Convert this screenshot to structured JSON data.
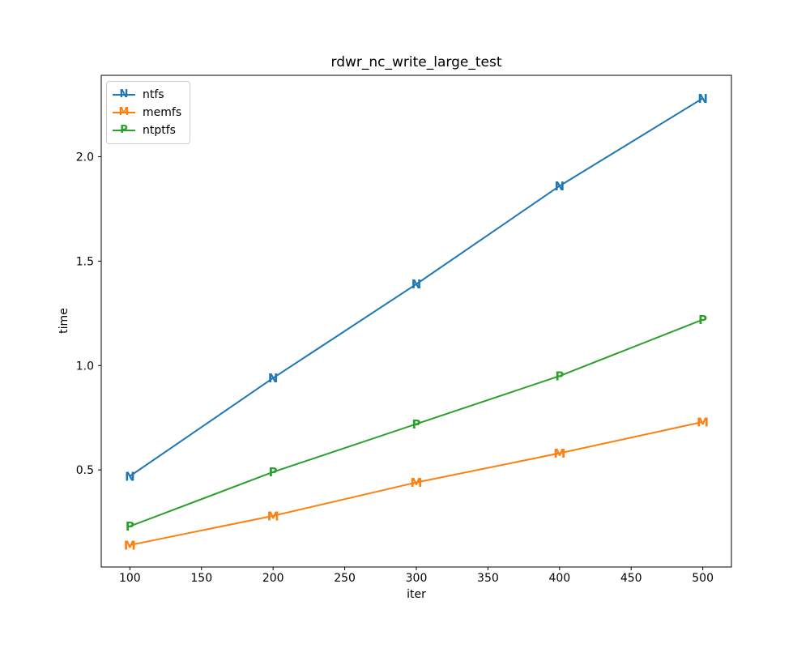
{
  "figure": {
    "background": "#ffffff",
    "frame_color": "#000000"
  },
  "chart_data": {
    "type": "line",
    "title": "rdwr_nc_write_large_test",
    "xlabel": "iter",
    "ylabel": "time",
    "x": [
      100,
      200,
      300,
      400,
      500
    ],
    "series": [
      {
        "name": "ntfs",
        "marker": "N",
        "color": "#1f77b4",
        "values": [
          0.47,
          0.94,
          1.39,
          1.86,
          2.28
        ]
      },
      {
        "name": "memfs",
        "marker": "M",
        "color": "#ff7f0e",
        "values": [
          0.14,
          0.28,
          0.44,
          0.58,
          0.73
        ]
      },
      {
        "name": "ntptfs",
        "marker": "P",
        "color": "#2ca02c",
        "values": [
          0.23,
          0.49,
          0.72,
          0.95,
          1.22
        ]
      }
    ],
    "xlim": [
      80,
      520
    ],
    "ylim": [
      0.035,
      2.39
    ],
    "xticks": [
      "100",
      "150",
      "200",
      "250",
      "300",
      "350",
      "400",
      "450",
      "500"
    ],
    "yticks": [
      "0.5",
      "1.0",
      "1.5",
      "2.0"
    ],
    "legend_position": "upper left",
    "grid": false
  }
}
